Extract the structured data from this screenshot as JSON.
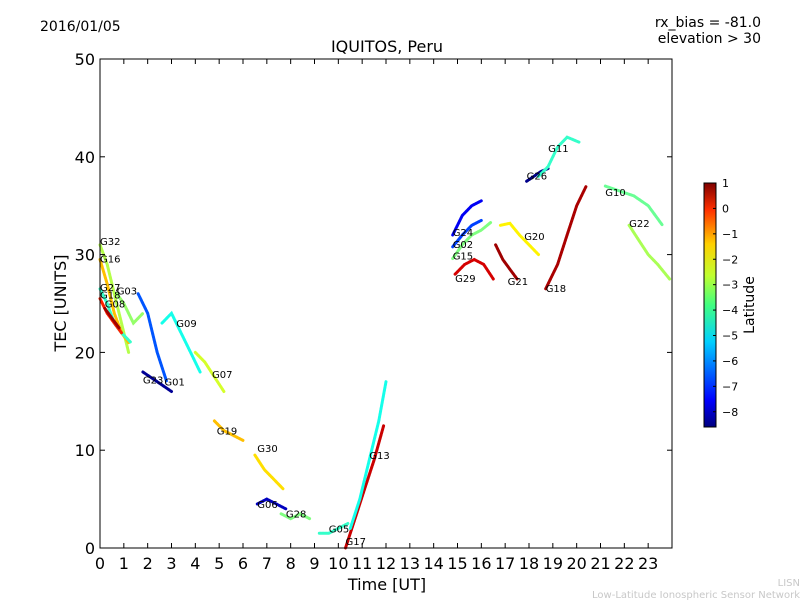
{
  "header": {
    "date": "2016/01/05",
    "bias": "rx_bias = -81.0",
    "elevation": "elevation > 30"
  },
  "footer": {
    "line1": "LISN",
    "line2": "Low-Latitude Ionospheric Sensor Network"
  },
  "chart_data": {
    "type": "scatter",
    "title": "IQUITOS, Peru",
    "xlabel": "Time [UT]",
    "ylabel": "TEC [UNITS]",
    "xlim": [
      0,
      24
    ],
    "ylim": [
      0,
      50
    ],
    "xticks": [
      "0",
      "1",
      "2",
      "3",
      "4",
      "5",
      "6",
      "7",
      "8",
      "9",
      "10",
      "11",
      "12",
      "13",
      "14",
      "15",
      "16",
      "17",
      "18",
      "19",
      "20",
      "21",
      "22",
      "23"
    ],
    "yticks": [
      "0",
      "10",
      "20",
      "30",
      "40",
      "50"
    ],
    "grid": false,
    "colorbar": {
      "label": "Latitude",
      "range": [
        -8.6,
        1
      ],
      "ticks": [
        "1",
        "0",
        "−1",
        "−2",
        "−3",
        "−4",
        "−5",
        "−6",
        "−7",
        "−8"
      ]
    },
    "series": [
      {
        "name": "G32",
        "lat": -3.3,
        "label_at": [
          0.0,
          31.0
        ],
        "x": [
          0.0,
          0.3,
          0.6,
          0.9,
          1.2
        ],
        "y": [
          31,
          29,
          26,
          23,
          20
        ]
      },
      {
        "name": "G16",
        "lat": -2.0,
        "label_at": [
          0.0,
          29.2
        ],
        "x": [
          0.0,
          0.3,
          0.6,
          0.9,
          1.2
        ],
        "y": [
          29.5,
          27,
          24,
          22,
          21
        ]
      },
      {
        "name": "G27",
        "lat": -4.5,
        "label_at": [
          0.0,
          26.3
        ],
        "x": [
          0.0,
          0.3,
          0.6,
          0.9,
          1.3
        ],
        "y": [
          26.5,
          25,
          23,
          22,
          21
        ]
      },
      {
        "name": "G18",
        "lat": -0.5,
        "label_at": [
          0.0,
          25.5
        ],
        "x": [
          0.0,
          0.3,
          0.6,
          0.9
        ],
        "y": [
          25.5,
          24,
          23,
          22
        ]
      },
      {
        "name": "G08",
        "lat": 0.7,
        "label_at": [
          0.2,
          24.6
        ],
        "x": [
          0.2,
          0.5,
          0.8
        ],
        "y": [
          24.5,
          23.5,
          22.5
        ]
      },
      {
        "name": "G03",
        "lat": -3.6,
        "label_at": [
          0.7,
          25.9
        ],
        "x": [
          0.7,
          1.0,
          1.4,
          1.8
        ],
        "y": [
          26,
          25,
          23,
          24
        ]
      },
      {
        "name": "G23",
        "lat": -6.6,
        "label_at": [
          1.8,
          16.8
        ],
        "x": [
          1.6,
          2.0,
          2.4,
          2.8
        ],
        "y": [
          26,
          24,
          20,
          17
        ]
      },
      {
        "name": "G01",
        "lat": -8.4,
        "label_at": [
          2.7,
          16.6
        ],
        "x": [
          1.8,
          2.1,
          2.4,
          2.7,
          3.0
        ],
        "y": [
          18,
          17.5,
          17,
          16.5,
          16
        ]
      },
      {
        "name": "G09",
        "lat": -4.8,
        "label_at": [
          3.2,
          22.6
        ],
        "x": [
          2.6,
          3.0,
          3.4,
          3.8,
          4.2
        ],
        "y": [
          23,
          24,
          22,
          20,
          18
        ]
      },
      {
        "name": "G07",
        "lat": -3.0,
        "label_at": [
          4.7,
          17.4
        ],
        "x": [
          4.0,
          4.4,
          4.8,
          5.2
        ],
        "y": [
          20,
          19,
          17.5,
          16
        ]
      },
      {
        "name": "G19",
        "lat": -2.0,
        "label_at": [
          4.9,
          11.6
        ],
        "x": [
          4.8,
          5.2,
          5.6,
          6.0
        ],
        "y": [
          13,
          12,
          11.5,
          11
        ]
      },
      {
        "name": "G30",
        "lat": -2.3,
        "label_at": [
          6.6,
          9.8
        ],
        "x": [
          6.5,
          6.9,
          7.3,
          7.7
        ],
        "y": [
          9.5,
          8,
          7,
          6
        ]
      },
      {
        "name": "G06",
        "lat": -8.0,
        "label_at": [
          6.6,
          4.1
        ],
        "x": [
          6.6,
          7.0,
          7.4,
          7.8
        ],
        "y": [
          4.5,
          5,
          4.5,
          4
        ]
      },
      {
        "name": "G28",
        "lat": -3.8,
        "label_at": [
          7.8,
          3.1
        ],
        "x": [
          7.6,
          8.0,
          8.4,
          8.8
        ],
        "y": [
          3.5,
          3,
          3.5,
          3
        ]
      },
      {
        "name": "G05",
        "lat": -4.5,
        "label_at": [
          9.6,
          1.6
        ],
        "x": [
          9.2,
          9.6,
          10.0,
          10.4
        ],
        "y": [
          1.5,
          1.5,
          2,
          2.5
        ]
      },
      {
        "name": "G17",
        "lat": 0.3,
        "label_at": [
          10.3,
          0.3
        ],
        "x": [
          10.3,
          10.7,
          11.1,
          11.5,
          11.9
        ],
        "y": [
          0,
          3,
          6,
          9,
          12.5
        ]
      },
      {
        "name": "G13",
        "lat": -4.8,
        "label_at": [
          11.3,
          9.1
        ],
        "x": [
          10.5,
          10.9,
          11.3,
          11.7,
          12.0
        ],
        "y": [
          2,
          5,
          9,
          13,
          17
        ]
      },
      {
        "name": "G24",
        "lat": -7.5,
        "label_at": [
          14.8,
          31.9
        ],
        "x": [
          14.8,
          15.2,
          15.6,
          16.0
        ],
        "y": [
          32,
          34,
          35,
          35.5
        ]
      },
      {
        "name": "G02",
        "lat": -6.8,
        "label_at": [
          14.8,
          30.7
        ],
        "x": [
          14.8,
          15.2,
          15.6,
          16.0
        ],
        "y": [
          30.8,
          32,
          33,
          33.5
        ]
      },
      {
        "name": "G15",
        "lat": -3.8,
        "label_at": [
          14.8,
          29.5
        ],
        "x": [
          14.8,
          15.2,
          15.6,
          16.0,
          16.4
        ],
        "y": [
          29.6,
          31,
          32,
          32.5,
          33.3
        ]
      },
      {
        "name": "G29",
        "lat": 0.2,
        "label_at": [
          14.9,
          27.2
        ],
        "x": [
          14.9,
          15.3,
          15.7,
          16.1,
          16.5
        ],
        "y": [
          28,
          29,
          29.5,
          29,
          27.5
        ]
      },
      {
        "name": "G20",
        "lat": -2.5,
        "label_at": [
          17.8,
          31.5
        ],
        "x": [
          16.8,
          17.2,
          17.6,
          18.0,
          18.4
        ],
        "y": [
          33,
          33.2,
          32,
          31,
          30
        ]
      },
      {
        "name": "G21",
        "lat": 0.7,
        "label_at": [
          17.1,
          26.9
        ],
        "x": [
          16.6,
          16.9,
          17.2,
          17.5
        ],
        "y": [
          31,
          29.5,
          28.5,
          27.5
        ]
      },
      {
        "name": "G26",
        "lat": -8.5,
        "label_at": [
          17.9,
          37.7
        ],
        "x": [
          17.9,
          18.2,
          18.5,
          18.8
        ],
        "y": [
          37.5,
          38,
          38.5,
          38.8
        ]
      },
      {
        "name": "G11",
        "lat": -4.5,
        "label_at": [
          18.8,
          40.5
        ],
        "x": [
          18.4,
          18.8,
          19.2,
          19.6,
          20.1
        ],
        "y": [
          38,
          39,
          41,
          42,
          41.5
        ]
      },
      {
        "name": "G18",
        "lat": 0.6,
        "label_at": [
          18.7,
          26.2
        ],
        "x": [
          18.7,
          19.2,
          19.6,
          20.0,
          20.4
        ],
        "y": [
          26.5,
          29,
          32,
          35,
          37
        ]
      },
      {
        "name": "G10",
        "lat": -4.0,
        "label_at": [
          21.2,
          36.0
        ],
        "x": [
          21.2,
          21.8,
          22.4,
          23.0,
          23.6
        ],
        "y": [
          37,
          36.5,
          36,
          35,
          33
        ]
      },
      {
        "name": "G22",
        "lat": -3.4,
        "label_at": [
          22.2,
          32.8
        ],
        "x": [
          22.2,
          22.6,
          23.0,
          23.4,
          23.9
        ],
        "y": [
          33,
          31.5,
          30,
          29,
          27.5
        ]
      }
    ]
  }
}
